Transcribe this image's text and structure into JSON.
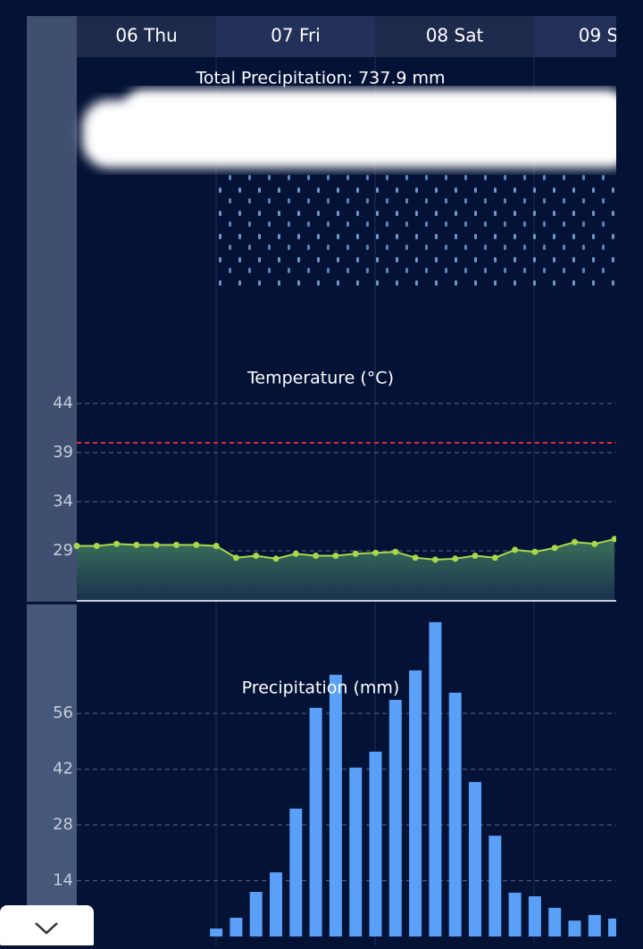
{
  "days": [
    "06 Thu",
    "07 Fri",
    "08 Sat",
    "09 S"
  ],
  "total_precipitation": "Total Precipitation: 737.9 mm",
  "chart_data": [
    {
      "type": "line",
      "title": "Temperature (°C)",
      "categories": [
        null,
        null,
        null,
        null,
        null,
        null,
        null,
        null,
        null,
        null,
        null,
        null,
        null,
        null,
        null,
        null,
        null,
        null,
        null,
        null,
        null,
        null,
        null,
        null,
        null,
        null,
        null,
        null
      ],
      "series": [
        {
          "name": "Temperature",
          "color": "#a8d84a",
          "values": [
            29.5,
            29.5,
            29.7,
            29.6,
            29.6,
            29.6,
            29.6,
            29.5,
            28.3,
            28.5,
            28.2,
            28.7,
            28.5,
            28.5,
            28.7,
            28.8,
            28.9,
            28.3,
            28.1,
            28.2,
            28.5,
            28.3,
            29.1,
            28.9,
            29.3,
            29.9,
            29.7,
            30.2
          ]
        }
      ],
      "ylim": [
        24,
        44
      ],
      "yticks": [
        29,
        34,
        39,
        44
      ],
      "grid": true,
      "threshold": 40,
      "threshold_color": "#e0283a"
    },
    {
      "type": "bar",
      "title": "Precipitation (mm)",
      "categories": [
        null,
        null,
        null,
        null,
        null,
        null,
        null,
        null,
        null,
        null,
        null,
        null,
        null,
        null,
        null,
        null,
        null,
        null,
        null,
        null,
        null,
        null,
        null,
        null,
        null,
        null,
        null,
        null
      ],
      "series": [
        {
          "name": "Precipitation",
          "color": "#5aa0f8",
          "values": [
            0,
            0,
            0,
            0,
            0,
            0,
            0,
            2,
            4.7,
            11.2,
            16.1,
            32.1,
            57.4,
            65.7,
            42.4,
            46.4,
            59.4,
            66.8,
            78.9,
            61.2,
            38.8,
            25.3,
            11,
            10.1,
            7.2,
            4,
            5.4,
            4.5
          ]
        }
      ],
      "ylim": [
        0,
        80
      ],
      "yticks": [
        14,
        28,
        42,
        56
      ],
      "grid": true
    }
  ]
}
